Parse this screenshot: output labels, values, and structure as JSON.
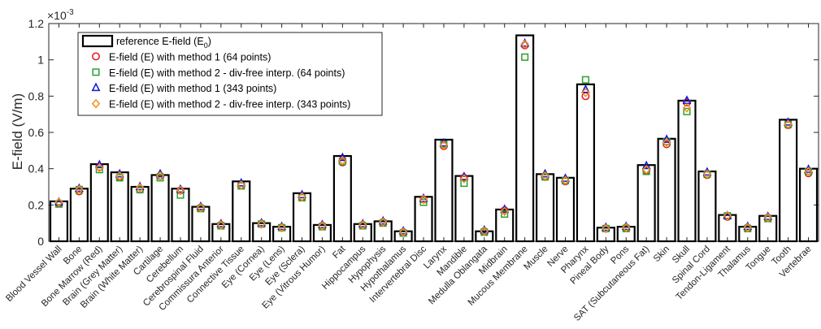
{
  "chart_data": {
    "type": "bar",
    "ylabel": "E-field (V/m)",
    "y_exponent_label": "×10",
    "y_exponent_power": "-3",
    "ylim": [
      0,
      1.2
    ],
    "yticks": [
      0,
      0.2,
      0.4,
      0.6,
      0.8,
      1,
      1.2
    ],
    "ytick_labels": [
      "0",
      "0.2",
      "0.4",
      "0.6",
      "0.8",
      "1",
      "1.2"
    ],
    "legend_position": "top-left",
    "categories": [
      "Blood Vessel Wall",
      "Bone",
      "Bone Marrow (Red)",
      "Brain (Grey Matter)",
      "Brain (White Matter)",
      "Cartilage",
      "Cerebellum",
      "Cerebrospinal Fluid",
      "Commissura Anterior",
      "Connective Tissue",
      "Eye (Cornea)",
      "Eye (Lens)",
      "Eye (Sclera)",
      "Eye (Vitrous Humor)",
      "Fat",
      "Hippocampus",
      "Hypophysis",
      "Hypothalamus",
      "Intervertebral Disc",
      "Larynx",
      "Mandible",
      "Medulla Oblangata",
      "Midbrain",
      "Mucous Membrane",
      "Muscle",
      "Nerve",
      "Pharynx",
      "Pineal Body",
      "Pons",
      "SAT (Subcutaneous Fat)",
      "Skin",
      "Skull",
      "Spinal Cord",
      "Tendon-Ligament",
      "Thalamus",
      "Tongue",
      "Tooth",
      "Vertebrae"
    ],
    "series": [
      {
        "name": "reference E-field (E0)",
        "legend_label": "reference E-field (E",
        "legend_sub": "0",
        "legend_suffix": ")",
        "marker": "bar",
        "color": "#000000",
        "values": [
          0.22,
          0.29,
          0.425,
          0.38,
          0.3,
          0.365,
          0.29,
          0.19,
          0.095,
          0.33,
          0.1,
          0.08,
          0.265,
          0.09,
          0.47,
          0.095,
          0.11,
          0.055,
          0.245,
          0.56,
          0.36,
          0.055,
          0.175,
          1.135,
          0.37,
          0.35,
          0.865,
          0.075,
          0.08,
          0.42,
          0.565,
          0.775,
          0.385,
          0.145,
          0.08,
          0.14,
          0.67,
          0.4
        ]
      },
      {
        "name": "E-field (E) with method 1 (64 points)",
        "marker": "circle",
        "color": "#e8141b",
        "values": [
          0.21,
          0.275,
          0.41,
          0.355,
          0.285,
          0.36,
          0.28,
          0.185,
          0.09,
          0.31,
          0.095,
          0.075,
          0.245,
          0.085,
          0.435,
          0.09,
          0.105,
          0.05,
          0.23,
          0.525,
          0.35,
          0.055,
          0.17,
          1.08,
          0.355,
          0.33,
          0.8,
          0.07,
          0.075,
          0.39,
          0.535,
          0.765,
          0.365,
          0.135,
          0.075,
          0.13,
          0.64,
          0.375
        ]
      },
      {
        "name": "E-field (E) with method 2 - div-free interp. (64 points)",
        "marker": "square",
        "color": "#2ca02c",
        "values": [
          0.205,
          0.285,
          0.395,
          0.35,
          0.285,
          0.35,
          0.255,
          0.18,
          0.085,
          0.305,
          0.095,
          0.075,
          0.24,
          0.08,
          0.44,
          0.085,
          0.1,
          0.045,
          0.215,
          0.535,
          0.32,
          0.05,
          0.15,
          1.015,
          0.355,
          0.335,
          0.89,
          0.07,
          0.07,
          0.385,
          0.55,
          0.715,
          0.37,
          0.14,
          0.07,
          0.125,
          0.645,
          0.385
        ]
      },
      {
        "name": "E-field (E) with method 1 (343 points)",
        "marker": "triangle",
        "color": "#0f14d8",
        "values": [
          0.215,
          0.29,
          0.42,
          0.37,
          0.3,
          0.37,
          0.285,
          0.19,
          0.095,
          0.32,
          0.1,
          0.08,
          0.255,
          0.09,
          0.46,
          0.095,
          0.11,
          0.055,
          0.235,
          0.54,
          0.355,
          0.06,
          0.175,
          1.09,
          0.37,
          0.345,
          0.835,
          0.075,
          0.08,
          0.415,
          0.56,
          0.775,
          0.38,
          0.14,
          0.08,
          0.135,
          0.655,
          0.395
        ]
      },
      {
        "name": "E-field (E) with method 2 - div-free interp. (343 points)",
        "marker": "diamond",
        "color": "#f28e1c",
        "values": [
          0.215,
          0.285,
          0.405,
          0.36,
          0.295,
          0.36,
          0.28,
          0.185,
          0.09,
          0.31,
          0.095,
          0.075,
          0.245,
          0.085,
          0.445,
          0.09,
          0.105,
          0.05,
          0.23,
          0.53,
          0.345,
          0.055,
          0.165,
          1.085,
          0.36,
          0.335,
          0.82,
          0.07,
          0.075,
          0.395,
          0.545,
          0.735,
          0.37,
          0.14,
          0.075,
          0.13,
          0.645,
          0.385
        ]
      }
    ]
  }
}
